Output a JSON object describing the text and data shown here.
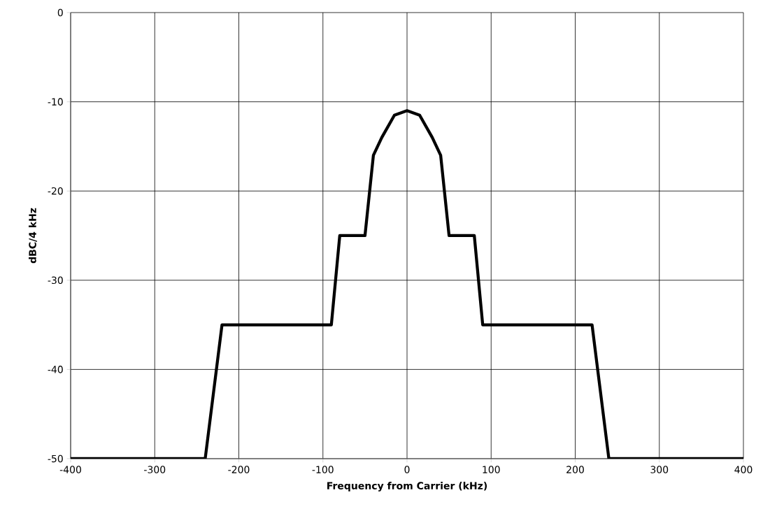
{
  "chart_data": {
    "type": "line",
    "xlabel": "Frequency from Carrier (kHz)",
    "ylabel": "dBC/4 kHz",
    "x": [
      -400,
      -240,
      -220,
      -90,
      -80,
      -50,
      -40,
      -30,
      -15,
      0,
      15,
      30,
      40,
      50,
      80,
      90,
      220,
      240,
      400
    ],
    "values": [
      -50,
      -50,
      -35,
      -35,
      -25,
      -25,
      -16,
      -14,
      -11.5,
      -11,
      -11.5,
      -14,
      -16,
      -25,
      -25,
      -35,
      -35,
      -50,
      -50
    ],
    "color": "#000000",
    "line_style": "solid",
    "xlim": [
      -400,
      400
    ],
    "ylim": [
      -50,
      0
    ],
    "xticks": [
      -400,
      -300,
      -200,
      -100,
      0,
      100,
      200,
      300,
      400
    ],
    "yticks": [
      -50,
      -40,
      -30,
      -20,
      -10,
      0
    ],
    "grid": true
  }
}
